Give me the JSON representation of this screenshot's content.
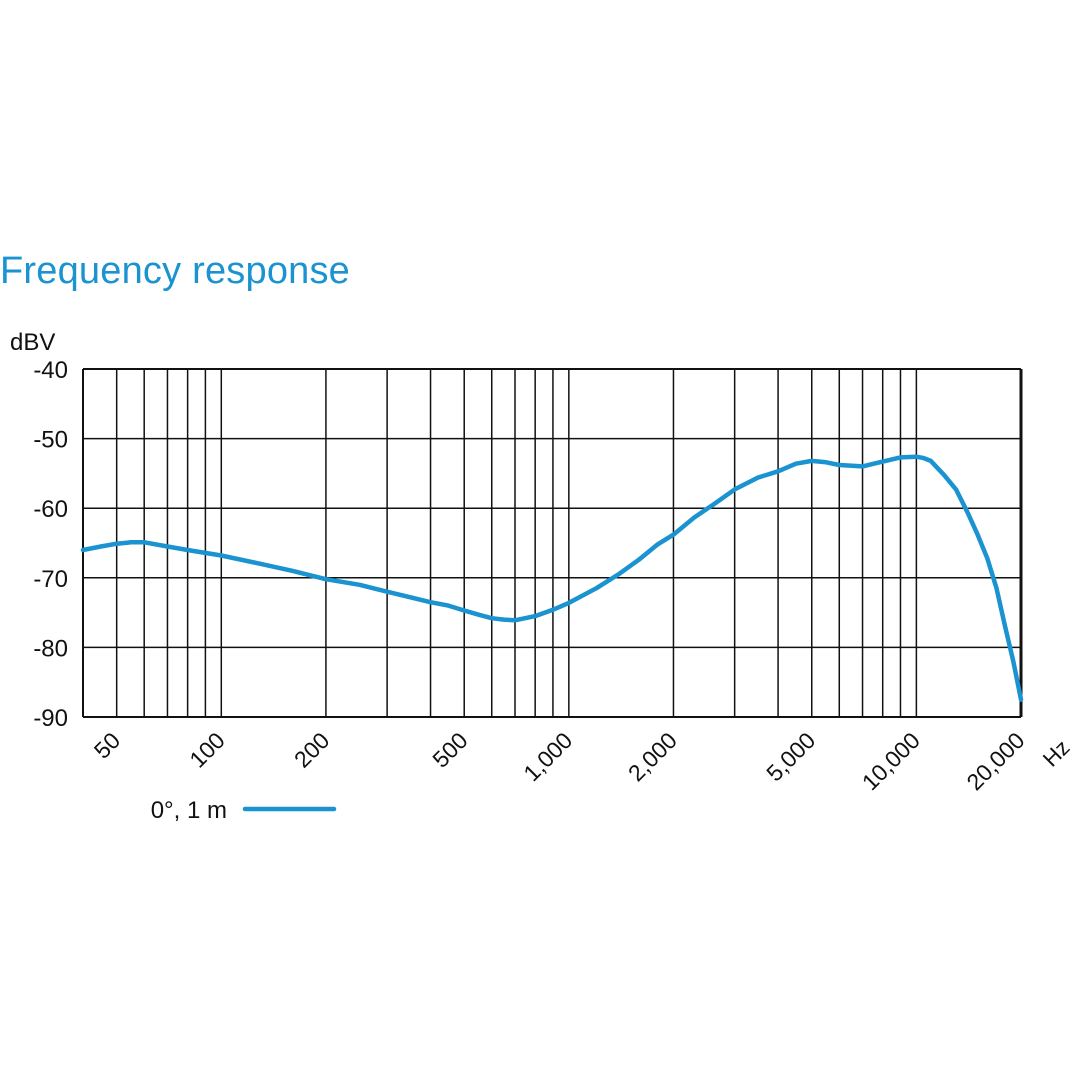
{
  "chart_data": {
    "type": "line",
    "title": "Frequency response",
    "ylabel": "dBV",
    "xlabel": "Hz",
    "x_scale": "log",
    "xlim": [
      40,
      20000
    ],
    "ylim": [
      -90,
      -40
    ],
    "grid": true,
    "yticks": [
      -40,
      -50,
      -60,
      -70,
      -80,
      -90
    ],
    "ytick_labels": [
      "-40",
      "-50",
      "-60",
      "-70",
      "-80",
      "-90"
    ],
    "xtick_values": [
      50,
      100,
      200,
      500,
      1000,
      2000,
      5000,
      10000,
      20000
    ],
    "xtick_labels": [
      "50",
      "100",
      "200",
      "500",
      "1,000",
      "2,000",
      "5,000",
      "10,000",
      "20,000"
    ],
    "x_gridlines": [
      50,
      60,
      70,
      80,
      90,
      100,
      200,
      300,
      400,
      500,
      600,
      700,
      800,
      900,
      1000,
      2000,
      3000,
      4000,
      5000,
      6000,
      7000,
      8000,
      9000,
      10000,
      20000
    ],
    "legend_position": "bottom-left",
    "colors": {
      "series": "#1a93d0",
      "title": "#1a93d0",
      "grid": "#111111"
    },
    "series": [
      {
        "name": "0°, 1 m",
        "x": [
          40,
          45,
          50,
          55,
          60,
          70,
          80,
          100,
          130,
          160,
          200,
          250,
          300,
          350,
          400,
          450,
          500,
          550,
          600,
          650,
          700,
          800,
          900,
          1000,
          1200,
          1400,
          1600,
          1800,
          2000,
          2300,
          2600,
          3000,
          3500,
          4000,
          4500,
          5000,
          5500,
          6000,
          7000,
          8000,
          9000,
          10000,
          10500,
          11000,
          12000,
          13000,
          14000,
          15000,
          16000,
          17000,
          18000,
          19000,
          20000
        ],
        "y": [
          -66.0,
          -65.5,
          -65.1,
          -64.9,
          -64.9,
          -65.5,
          -66.0,
          -66.8,
          -68.0,
          -69.0,
          -70.2,
          -71.0,
          -72.0,
          -72.8,
          -73.5,
          -74.0,
          -74.7,
          -75.3,
          -75.8,
          -76.0,
          -76.1,
          -75.5,
          -74.6,
          -73.6,
          -71.5,
          -69.4,
          -67.3,
          -65.2,
          -63.8,
          -61.3,
          -59.5,
          -57.3,
          -55.6,
          -54.7,
          -53.6,
          -53.2,
          -53.4,
          -53.8,
          -54.0,
          -53.3,
          -52.7,
          -52.6,
          -52.8,
          -53.2,
          -55.2,
          -57.3,
          -60.5,
          -63.8,
          -67.2,
          -71.5,
          -77.0,
          -82.0,
          -87.5
        ]
      }
    ]
  }
}
